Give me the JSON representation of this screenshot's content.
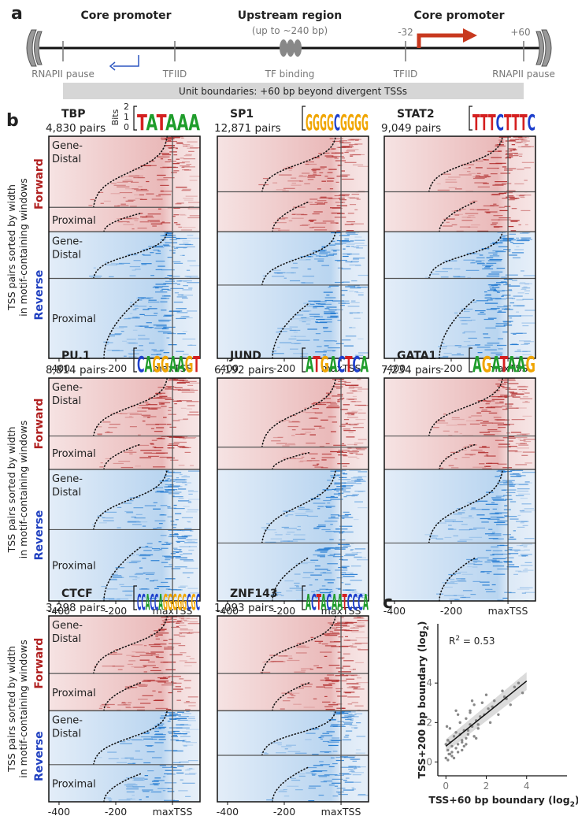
{
  "panel_a": {
    "label": "a",
    "left_title": "Core promoter",
    "center_title": "Upstream region",
    "center_subtitle": "(up to ~240 bp)",
    "right_title": "Core promoter",
    "pos_minus": "-32",
    "pos_plus": "+60",
    "sites": [
      "RNAPII pause",
      "TFIID",
      "TF binding",
      "TFIID",
      "RNAPII pause"
    ],
    "boundary_note": "Unit boundaries: +60 bp beyond divergent TSSs"
  },
  "panel_b": {
    "label": "b",
    "y_title": [
      "TSS pairs sorted by width",
      "in motif-containing windows"
    ],
    "strand_labels": [
      "Forward",
      "Reverse"
    ],
    "distal_label": [
      "Gene-",
      "Distal"
    ],
    "proximal_label": "Proximal",
    "bits_label": "Bits",
    "bits_ticks": [
      2,
      1,
      0
    ],
    "xlim": [
      -436,
      97
    ],
    "xticks": [
      -400,
      -200,
      {
        "value": 0,
        "label": "maxTSS"
      }
    ],
    "panels": [
      {
        "name": "TBP",
        "pairs": "4,830 pairs",
        "motif": [
          "T",
          "A",
          "T",
          "A",
          "A",
          "A"
        ]
      },
      {
        "name": "SP1",
        "pairs": "12,871 pairs",
        "motif": [
          "G",
          "G",
          "G",
          "G",
          "C",
          "G",
          "G",
          "G",
          "G"
        ]
      },
      {
        "name": "STAT2",
        "pairs": "9,049 pairs",
        "motif": [
          "T",
          "T",
          "T",
          "C",
          "T",
          "T",
          "T",
          "C"
        ]
      },
      {
        "name": "PU.1",
        "pairs": "8,814 pairs",
        "motif": [
          "C",
          "A",
          "G",
          "G",
          "A",
          "A",
          "G",
          "T"
        ]
      },
      {
        "name": "JUND",
        "pairs": "6,192 pairs",
        "motif": [
          "A",
          "T",
          "G",
          "A",
          "C",
          "T",
          "C",
          "A"
        ]
      },
      {
        "name": "GATA1",
        "pairs": "7,234 pairs",
        "motif": [
          "A",
          "G",
          "A",
          "T",
          "A",
          "A",
          "G"
        ]
      },
      {
        "name": "CTCF",
        "pairs": "3,298 pairs",
        "motif": [
          "C",
          "C",
          "A",
          "C",
          "C",
          "A",
          "G",
          "G",
          "G",
          "G",
          "G",
          "C",
          "G",
          "C"
        ]
      },
      {
        "name": "ZNF143",
        "pairs": "1,093 pairs",
        "motif": [
          "A",
          "C",
          "T",
          "A",
          "C",
          "A",
          "A",
          "T",
          "C",
          "C",
          "C",
          "A"
        ]
      }
    ]
  },
  "panel_c": {
    "type": "scatter",
    "label": "c",
    "r2": {
      "base": "R",
      "sup": "2",
      "rest": " = 0.53"
    },
    "xlabel": {
      "text": "TSS+60 bp boundary (log",
      "sub": "2",
      "close": ")"
    },
    "ylabel": {
      "text": "TSS+200 bp boundary (log",
      "sub": "2",
      "close": ")"
    },
    "xlim": [
      -0.4,
      6
    ],
    "ylim": [
      -0.7,
      7
    ],
    "xticks": [
      0,
      2,
      4
    ],
    "yticks": [
      0,
      2,
      4
    ],
    "color": "#888888",
    "x": [
      0,
      0.1,
      0.2,
      0.1,
      0.3,
      0.4,
      0.2,
      0.5,
      0.6,
      0.3,
      0.7,
      0.8,
      0.5,
      0.9,
      1.0,
      0.6,
      1.1,
      1.2,
      0.8,
      1.3,
      1.4,
      1.0,
      1.5,
      1.6,
      1.2,
      1.7,
      1.8,
      1.4,
      1.9,
      2.0,
      1.6,
      2.1,
      2.2,
      2.4,
      2.6,
      2.8,
      3.0,
      3.2,
      3.4,
      3.6,
      0.2,
      0.4,
      0.6,
      0.8,
      1.0,
      1.2,
      0.1,
      0.3,
      0.5,
      0.7,
      0.9,
      1.1,
      1.3,
      1.5,
      2.3,
      2.9,
      3.8,
      0,
      0.05,
      0.15
    ],
    "y": [
      0.2,
      0.6,
      1.0,
      0.1,
      0.8,
      1.3,
      0.4,
      1.5,
      0.9,
      0.3,
      2.0,
      1.1,
      0.7,
      1.6,
      2.2,
      0.5,
      1.4,
      2.5,
      1.0,
      1.8,
      2.9,
      0.9,
      2.1,
      1.7,
      2.6,
      2.3,
      3.0,
      1.3,
      2.4,
      3.4,
      1.9,
      2.7,
      2.0,
      3.1,
      2.4,
      3.6,
      3.2,
      2.9,
      3.8,
      4.0,
      1.7,
      0.2,
      2.4,
      0.6,
      1.2,
      1.9,
      1.1,
      0.5,
      2.6,
      1.4,
      0.8,
      1.6,
      3.1,
      1.2,
      2.8,
      3.3,
      3.5,
      0.9,
      1.8,
      0.4
    ],
    "fit": {
      "x": [
        0,
        4
      ],
      "y": [
        0.8,
        4.1
      ]
    }
  }
}
